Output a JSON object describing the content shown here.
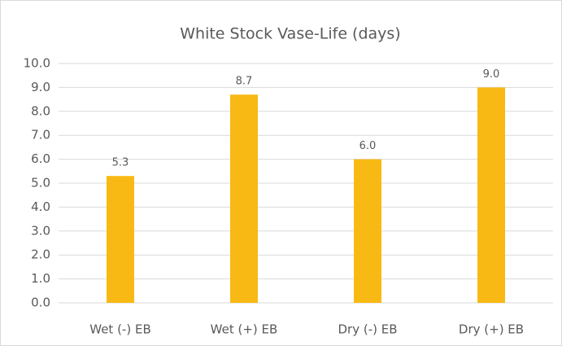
{
  "chart_data": {
    "type": "bar",
    "title": "White Stock Vase-Life (days)",
    "categories": [
      "Wet (-) EB",
      "Wet (+) EB",
      "Dry (-) EB",
      "Dry (+) EB"
    ],
    "values": [
      5.3,
      8.7,
      6.0,
      9.0
    ],
    "value_labels": [
      "5.3",
      "8.7",
      "6.0",
      "9.0"
    ],
    "color": "#f9b914",
    "ylim": [
      0,
      10
    ],
    "yticks": [
      {
        "value": 0,
        "label": "0.0"
      },
      {
        "value": 1,
        "label": "1.0"
      },
      {
        "value": 2,
        "label": "2.0"
      },
      {
        "value": 3,
        "label": "3.0"
      },
      {
        "value": 4,
        "label": "4.0"
      },
      {
        "value": 5,
        "label": "5.0"
      },
      {
        "value": 6,
        "label": "6.0"
      },
      {
        "value": 7,
        "label": "7.0"
      },
      {
        "value": 8,
        "label": "8.0"
      },
      {
        "value": 9,
        "label": "9.0"
      },
      {
        "value": 10,
        "label": "10.0"
      }
    ],
    "grid": true
  }
}
